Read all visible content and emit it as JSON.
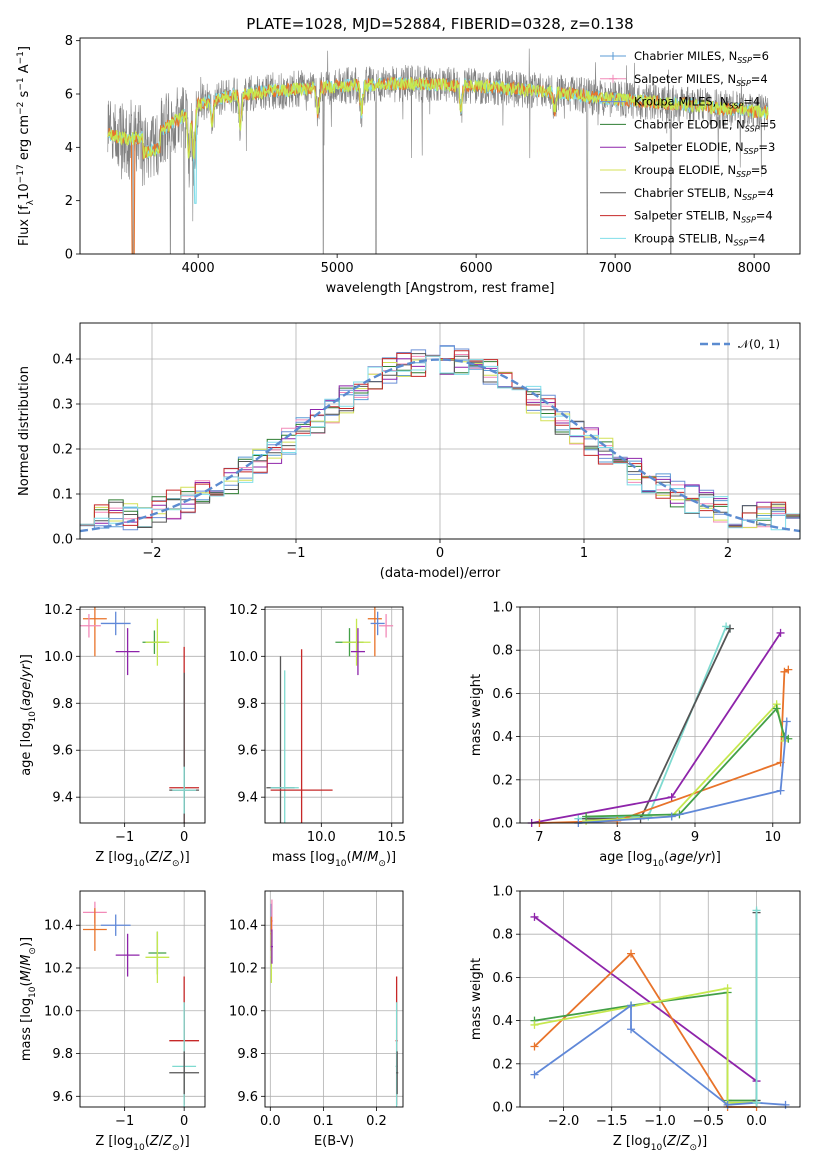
{
  "figure_title": "PLATE=1028, MJD=52884, FIBERID=0328, z=0.138",
  "colors": {
    "chabrier_miles": "#5b9bd5",
    "salpeter_miles": "#f28ab8",
    "kroupa_miles": "#6b8fd6",
    "chabrier_elodie": "#2e7d32",
    "salpeter_elodie": "#8e24aa",
    "kroupa_elodie": "#d4e157",
    "chabrier_stelib": "#555555",
    "salpeter_stelib": "#c62828",
    "kroupa_stelib": "#80deea",
    "orange": "#e8732a",
    "blue": "#6088d8",
    "green": "#43a047",
    "purple": "#8e24aa",
    "yellowgreen": "#c6e84f",
    "teal": "#7fdad0",
    "grey": "#808080",
    "gaussian": "#5b8bd0",
    "grid": "#b0b0b0"
  },
  "chart_data": [
    {
      "id": "spectrum",
      "type": "line",
      "title": "PLATE=1028, MJD=52884, FIBERID=0328, z=0.138",
      "xlabel": "wavelength [Angstrom, rest frame]",
      "ylabel": "Flux [f_λ 10^-17 erg cm^-2 s^-1 A^-1]",
      "xlim": [
        3150,
        8330
      ],
      "ylim": [
        0,
        8.1
      ],
      "xticks": [
        4000,
        5000,
        6000,
        7000,
        8000
      ],
      "yticks": [
        0,
        2,
        4,
        6,
        8
      ],
      "grid": false,
      "legend_position": "top-right",
      "data_color": "grey",
      "model_colors": [
        "kroupa_stelib",
        "orange",
        "yellowgreen"
      ],
      "data_range": [
        3350,
        8100
      ],
      "continuum": [
        [
          3350,
          4.5
        ],
        [
          3500,
          4.3
        ],
        [
          3700,
          4.5
        ],
        [
          3900,
          5.2
        ],
        [
          4000,
          5.6
        ],
        [
          4200,
          5.9
        ],
        [
          4500,
          6.1
        ],
        [
          5000,
          6.3
        ],
        [
          5500,
          6.4
        ],
        [
          6000,
          6.3
        ],
        [
          6500,
          6.1
        ],
        [
          7000,
          5.8
        ],
        [
          7500,
          5.6
        ],
        [
          8100,
          5.3
        ]
      ],
      "absorption_lines": [
        [
          3933,
          1.6
        ],
        [
          3968,
          1.9
        ],
        [
          4101,
          0.8
        ],
        [
          4304,
          1.2
        ],
        [
          4861,
          1.0
        ],
        [
          5175,
          1.0
        ],
        [
          5890,
          0.9
        ],
        [
          6563,
          0.7
        ]
      ],
      "dropouts": [
        3530,
        3800,
        3900,
        4900,
        5280,
        6800,
        7400
      ],
      "legend": [
        {
          "label": "Chabrier MILES, N",
          "sub": "SSP",
          "eq": "=6",
          "color": "chabrier_miles"
        },
        {
          "label": "Salpeter MILES, N",
          "sub": "SSP",
          "eq": "=4",
          "color": "salpeter_miles"
        },
        {
          "label": "Kroupa MILES, N",
          "sub": "SSP",
          "eq": "=4",
          "color": "kroupa_miles"
        },
        {
          "label": "Chabrier ELODIE, N",
          "sub": "SSP",
          "eq": "=5",
          "color": "chabrier_elodie"
        },
        {
          "label": "Salpeter ELODIE, N",
          "sub": "SSP",
          "eq": "=3",
          "color": "salpeter_elodie"
        },
        {
          "label": "Kroupa ELODIE, N",
          "sub": "SSP",
          "eq": "=5",
          "color": "kroupa_elodie"
        },
        {
          "label": "Chabrier STELIB, N",
          "sub": "SSP",
          "eq": "=4",
          "color": "chabrier_stelib"
        },
        {
          "label": "Salpeter STELIB, N",
          "sub": "SSP",
          "eq": "=4",
          "color": "salpeter_stelib"
        },
        {
          "label": "Kroupa STELIB, N",
          "sub": "SSP",
          "eq": "=4",
          "color": "kroupa_stelib"
        }
      ]
    },
    {
      "id": "residuals",
      "type": "histogram",
      "xlabel": "(data-model)/error",
      "ylabel": "Normed distribution",
      "xlim": [
        -2.5,
        2.5
      ],
      "ylim": [
        0,
        0.48
      ],
      "xticks": [
        -2,
        -1,
        0,
        1,
        2
      ],
      "yticks": [
        0.0,
        0.1,
        0.2,
        0.3,
        0.4
      ],
      "grid": true,
      "legend_position": "top-right",
      "gaussian": {
        "mean": 0,
        "sigma": 1,
        "label": "𝒩(0, 1)",
        "color": "gaussian"
      },
      "bin_edges_range": [
        -2.5,
        2.5
      ],
      "bin_count": 50,
      "series_colors": [
        "chabrier_miles",
        "salpeter_miles",
        "kroupa_miles",
        "chabrier_elodie",
        "salpeter_elodie",
        "kroupa_elodie",
        "chabrier_stelib",
        "salpeter_stelib",
        "kroupa_stelib"
      ]
    },
    {
      "id": "age_vs_Z",
      "type": "errorbar",
      "xlabel": "Z [log10(Z/Z☉)]",
      "ylabel": "age [log10(age/yr)]",
      "xlim": [
        -1.75,
        0.35
      ],
      "ylim": [
        9.29,
        10.21
      ],
      "xticks": [
        -1,
        0
      ],
      "yticks": [
        9.4,
        9.6,
        9.8,
        10.0,
        10.2
      ],
      "grid": true,
      "points": [
        {
          "x": -1.5,
          "y": 10.16,
          "xerr": 0.2,
          "yerr": 0.16,
          "color": "orange"
        },
        {
          "x": -1.6,
          "y": 10.13,
          "xerr": 0.2,
          "yerr": 0.05,
          "color": "salpeter_miles"
        },
        {
          "x": -1.15,
          "y": 10.14,
          "xerr": 0.25,
          "yerr": 0.05,
          "color": "blue"
        },
        {
          "x": -0.95,
          "y": 10.02,
          "xerr": 0.2,
          "yerr": 0.1,
          "color": "purple"
        },
        {
          "x": -0.5,
          "y": 10.06,
          "xerr": 0.2,
          "yerr": 0.05,
          "color": "green"
        },
        {
          "x": -0.45,
          "y": 10.06,
          "xerr": 0.2,
          "yerr": 0.1,
          "color": "yellowgreen"
        },
        {
          "x": 0.0,
          "y": 9.44,
          "xerr": 0.25,
          "yerr": 0.6,
          "color": "salpeter_stelib"
        },
        {
          "x": 0.0,
          "y": 9.43,
          "xerr": 0.25,
          "yerr": 0.5,
          "color": "chabrier_stelib"
        },
        {
          "x": 0.0,
          "y": 9.43,
          "xerr": 0.2,
          "yerr": 0.1,
          "color": "teal"
        }
      ]
    },
    {
      "id": "age_vs_mass",
      "type": "errorbar",
      "xlabel": "mass [log10(M/M☉)]",
      "ylabel": "",
      "xlim": [
        9.6,
        10.58
      ],
      "ylim": [
        9.29,
        10.21
      ],
      "xticks": [
        10.0,
        10.5
      ],
      "yticks": [
        9.4,
        9.6,
        9.8,
        10.0,
        10.2
      ],
      "grid": true,
      "points": [
        {
          "x": 9.71,
          "y": 9.44,
          "xerr": 0.1,
          "yerr": 0.56,
          "color": "chabrier_stelib"
        },
        {
          "x": 9.74,
          "y": 9.44,
          "xerr": 0.1,
          "yerr": 0.5,
          "color": "teal"
        },
        {
          "x": 9.86,
          "y": 9.43,
          "xerr": 0.22,
          "yerr": 0.6,
          "color": "salpeter_stelib"
        },
        {
          "x": 10.2,
          "y": 10.06,
          "xerr": 0.1,
          "yerr": 0.06,
          "color": "green"
        },
        {
          "x": 10.25,
          "y": 10.06,
          "xerr": 0.1,
          "yerr": 0.1,
          "color": "yellowgreen"
        },
        {
          "x": 10.26,
          "y": 10.02,
          "xerr": 0.05,
          "yerr": 0.1,
          "color": "purple"
        },
        {
          "x": 10.38,
          "y": 10.16,
          "xerr": 0.05,
          "yerr": 0.16,
          "color": "orange"
        },
        {
          "x": 10.4,
          "y": 10.14,
          "xerr": 0.05,
          "yerr": 0.05,
          "color": "blue"
        },
        {
          "x": 10.46,
          "y": 10.13,
          "xerr": 0.05,
          "yerr": 0.05,
          "color": "salpeter_miles"
        }
      ]
    },
    {
      "id": "massweight_vs_age",
      "type": "line",
      "xlabel": "age [log10(age/yr)]",
      "ylabel": "mass weight",
      "xlim": [
        6.75,
        10.35
      ],
      "ylim": [
        0,
        1.0
      ],
      "xticks": [
        7,
        8,
        9,
        10
      ],
      "yticks": [
        0.0,
        0.2,
        0.4,
        0.6,
        0.8,
        1.0
      ],
      "grid": true,
      "series": [
        {
          "color": "teal",
          "points": [
            [
              7.5,
              0.02
            ],
            [
              8.4,
              0.03
            ],
            [
              9.4,
              0.91
            ],
            [
              9.45,
              0.9
            ]
          ]
        },
        {
          "color": "chabrier_stelib",
          "points": [
            [
              7.6,
              0.02
            ],
            [
              8.3,
              0.02
            ],
            [
              9.45,
              0.9
            ]
          ]
        },
        {
          "color": "purple",
          "points": [
            [
              6.9,
              0.0
            ],
            [
              8.7,
              0.12
            ],
            [
              10.1,
              0.88
            ]
          ]
        },
        {
          "color": "orange",
          "points": [
            [
              7.0,
              0.0
            ],
            [
              8.0,
              0.01
            ],
            [
              10.1,
              0.28
            ],
            [
              10.15,
              0.7
            ],
            [
              10.2,
              0.71
            ]
          ]
        },
        {
          "color": "yellowgreen",
          "points": [
            [
              7.6,
              0.01
            ],
            [
              8.7,
              0.03
            ],
            [
              10.05,
              0.55
            ],
            [
              10.15,
              0.38
            ]
          ]
        },
        {
          "color": "green",
          "points": [
            [
              7.6,
              0.03
            ],
            [
              8.8,
              0.04
            ],
            [
              10.05,
              0.53
            ],
            [
              10.15,
              0.4
            ],
            [
              10.2,
              0.39
            ]
          ]
        },
        {
          "color": "blue",
          "points": [
            [
              7.5,
              0.0
            ],
            [
              8.7,
              0.03
            ],
            [
              10.1,
              0.15
            ],
            [
              10.18,
              0.47
            ]
          ]
        }
      ]
    },
    {
      "id": "mass_vs_Z",
      "type": "errorbar",
      "xlabel": "Z [log10(Z/Z☉)]",
      "ylabel": "mass [log10(M/M☉)]",
      "xlim": [
        -1.75,
        0.35
      ],
      "ylim": [
        9.55,
        10.56
      ],
      "xticks": [
        -1,
        0
      ],
      "yticks": [
        9.6,
        9.8,
        10.0,
        10.2,
        10.4
      ],
      "grid": true,
      "points": [
        {
          "x": -1.5,
          "y": 10.46,
          "xerr": 0.2,
          "yerr": 0.05,
          "color": "salpeter_miles"
        },
        {
          "x": -1.5,
          "y": 10.38,
          "xerr": 0.2,
          "yerr": 0.1,
          "color": "orange"
        },
        {
          "x": -1.15,
          "y": 10.4,
          "xerr": 0.25,
          "yerr": 0.05,
          "color": "blue"
        },
        {
          "x": -0.95,
          "y": 10.26,
          "xerr": 0.2,
          "yerr": 0.1,
          "color": "purple"
        },
        {
          "x": -0.45,
          "y": 10.27,
          "xerr": 0.15,
          "yerr": 0.1,
          "color": "green"
        },
        {
          "x": -0.45,
          "y": 10.25,
          "xerr": 0.2,
          "yerr": 0.12,
          "color": "yellowgreen"
        },
        {
          "x": 0.0,
          "y": 9.86,
          "xerr": 0.25,
          "yerr": 0.3,
          "color": "salpeter_stelib"
        },
        {
          "x": 0.0,
          "y": 9.74,
          "xerr": 0.2,
          "yerr": 0.3,
          "color": "teal"
        },
        {
          "x": 0.0,
          "y": 9.71,
          "xerr": 0.25,
          "yerr": 0.1,
          "color": "chabrier_stelib"
        }
      ]
    },
    {
      "id": "mass_vs_ebv",
      "type": "errorbar",
      "xlabel": "E(B-V)",
      "ylabel": "",
      "xlim": [
        -0.01,
        0.25
      ],
      "ylim": [
        9.55,
        10.56
      ],
      "xticks": [
        0.0,
        0.1,
        0.2
      ],
      "yticks": [
        9.6,
        9.8,
        10.0,
        10.2,
        10.4
      ],
      "grid": true,
      "points": [
        {
          "x": 0.002,
          "y": 10.4,
          "xerr": 0.002,
          "yerr": 0.1,
          "color": "blue"
        },
        {
          "x": 0.003,
          "y": 10.42,
          "xerr": 0.002,
          "yerr": 0.1,
          "color": "salpeter_miles"
        },
        {
          "x": 0.002,
          "y": 10.36,
          "xerr": 0.002,
          "yerr": 0.08,
          "color": "orange"
        },
        {
          "x": 0.002,
          "y": 10.25,
          "xerr": 0.002,
          "yerr": 0.12,
          "color": "yellowgreen"
        },
        {
          "x": 0.003,
          "y": 10.3,
          "xerr": 0.002,
          "yerr": 0.08,
          "color": "purple"
        },
        {
          "x": 0.238,
          "y": 9.86,
          "xerr": 0.002,
          "yerr": 0.3,
          "color": "salpeter_stelib"
        },
        {
          "x": 0.238,
          "y": 9.74,
          "xerr": 0.002,
          "yerr": 0.3,
          "color": "teal"
        },
        {
          "x": 0.239,
          "y": 9.71,
          "xerr": 0.002,
          "yerr": 0.1,
          "color": "chabrier_stelib"
        }
      ]
    },
    {
      "id": "massweight_vs_Z",
      "type": "line",
      "xlabel": "Z [log10(Z/Z☉)]",
      "ylabel": "mass weight",
      "xlim": [
        -2.45,
        0.45
      ],
      "ylim": [
        0,
        1.0
      ],
      "xticks": [
        -2.0,
        -1.5,
        -1.0,
        -0.5,
        0.0
      ],
      "yticks": [
        0.0,
        0.2,
        0.4,
        0.6,
        0.8,
        1.0
      ],
      "grid": true,
      "series": [
        {
          "color": "purple",
          "points": [
            [
              -2.3,
              0.88
            ],
            [
              0.0,
              0.12
            ]
          ]
        },
        {
          "color": "orange",
          "points": [
            [
              -2.3,
              0.28
            ],
            [
              -1.3,
              0.71
            ],
            [
              -0.3,
              0.0
            ],
            [
              0.0,
              0.0
            ]
          ]
        },
        {
          "color": "green",
          "points": [
            [
              -2.3,
              0.4
            ],
            [
              -1.3,
              0.47
            ],
            [
              -0.3,
              0.53
            ],
            [
              -0.3,
              0.03
            ],
            [
              0.0,
              0.03
            ]
          ]
        },
        {
          "color": "yellowgreen",
          "points": [
            [
              -2.3,
              0.38
            ],
            [
              -0.3,
              0.55
            ],
            [
              -0.3,
              0.02
            ],
            [
              0.0,
              0.02
            ]
          ]
        },
        {
          "color": "blue",
          "points": [
            [
              -2.3,
              0.15
            ],
            [
              -1.3,
              0.47
            ],
            [
              -1.3,
              0.36
            ],
            [
              -0.3,
              0.01
            ],
            [
              0.0,
              0.02
            ],
            [
              0.3,
              0.01
            ]
          ]
        },
        {
          "color": "chabrier_stelib",
          "points": [
            [
              0.0,
              0.9
            ],
            [
              0.0,
              0.03
            ]
          ]
        },
        {
          "color": "teal",
          "points": [
            [
              0.0,
              0.91
            ],
            [
              0.0,
              0.02
            ]
          ]
        }
      ]
    }
  ]
}
